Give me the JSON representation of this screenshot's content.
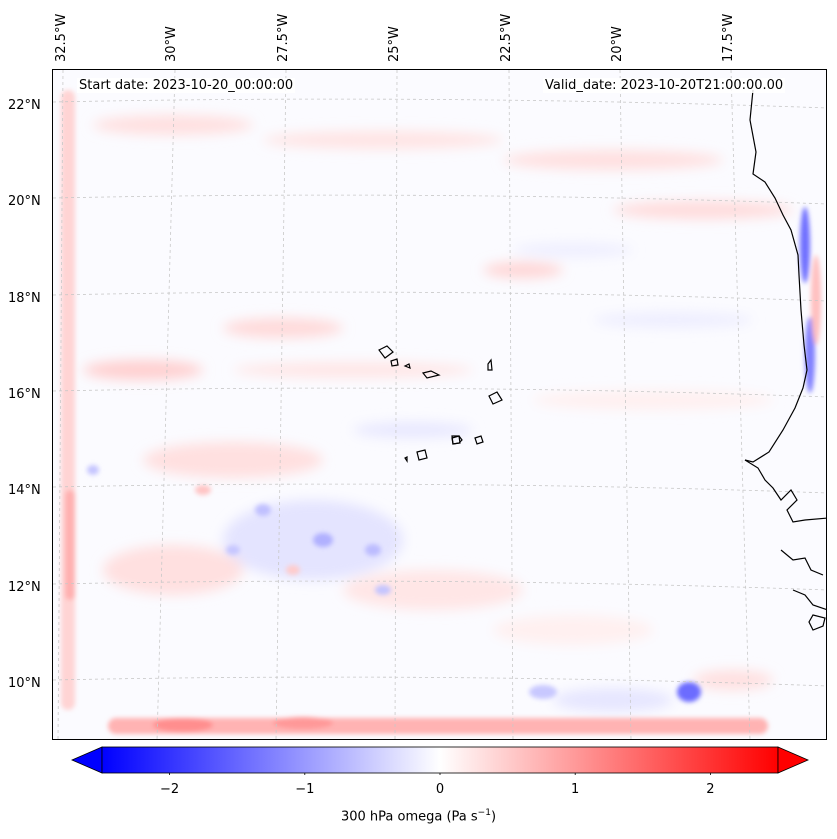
{
  "map": {
    "start_date": "Start date: 2023-10-20_00:00:00",
    "valid_date": "Valid_date: 2023-10-20T21:00:00.00",
    "lon_labels": [
      "32.5°W",
      "30°W",
      "27.5°W",
      "25°W",
      "22.5°W",
      "20°W",
      "17.5°W"
    ],
    "lat_labels": [
      "22°N",
      "20°N",
      "18°N",
      "16°N",
      "14°N",
      "12°N",
      "10°N"
    ],
    "field": "300 hPa omega",
    "colors": {
      "neg": "#0000ff",
      "mid": "#ffffff",
      "pos": "#ff0000",
      "coast": "#000000",
      "grid": "#b8b8b8"
    }
  },
  "colorbar": {
    "label": "300 hPa omega (Pa s",
    "label_sup": "−1",
    "label_close": ")",
    "min": -2.5,
    "max": 2.5,
    "ticks": [
      "−2",
      "−1",
      "0",
      "1",
      "2"
    ],
    "tick_values": [
      -2,
      -1,
      0,
      1,
      2
    ]
  }
}
